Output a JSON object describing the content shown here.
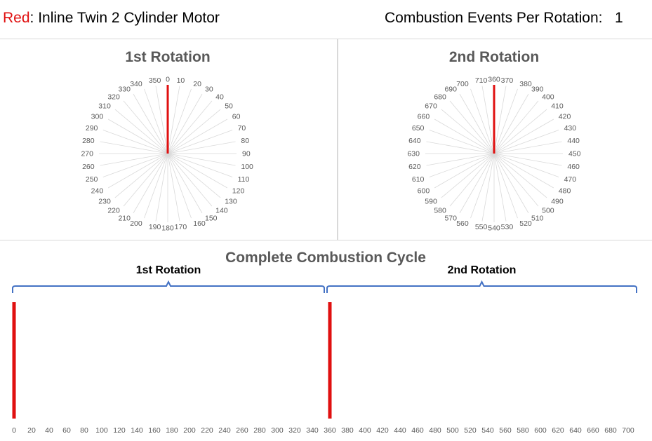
{
  "header": {
    "color_name": "Red",
    "motor_name": ": Inline Twin 2 Cylinder Motor",
    "events_label": "Combustion Events Per Rotation:",
    "events_value": "1"
  },
  "colors": {
    "event": "#e01010",
    "spoke": "#d9d9d9",
    "brace": "#4472c4",
    "title": "#595959"
  },
  "chart_data": [
    {
      "type": "radar",
      "title": "1st Rotation",
      "angle_labels": [
        0,
        10,
        20,
        30,
        40,
        50,
        60,
        70,
        80,
        90,
        100,
        110,
        120,
        130,
        140,
        150,
        160,
        170,
        180,
        190,
        200,
        210,
        220,
        230,
        240,
        250,
        260,
        270,
        280,
        290,
        300,
        310,
        320,
        330,
        340,
        350
      ],
      "series": [
        {
          "name": "Red",
          "events_deg": [
            0
          ]
        }
      ]
    },
    {
      "type": "radar",
      "title": "2nd Rotation",
      "angle_labels": [
        360,
        370,
        380,
        390,
        400,
        410,
        420,
        430,
        440,
        450,
        460,
        470,
        480,
        490,
        500,
        510,
        520,
        530,
        540,
        550,
        560,
        570,
        580,
        590,
        600,
        610,
        620,
        630,
        640,
        650,
        660,
        670,
        680,
        690,
        700,
        710
      ],
      "series": [
        {
          "name": "Red",
          "events_deg": [
            360
          ]
        }
      ]
    },
    {
      "type": "bar",
      "title": "Complete Combustion Cycle",
      "x_ticks": [
        0,
        20,
        40,
        60,
        80,
        100,
        120,
        140,
        160,
        180,
        200,
        220,
        240,
        260,
        280,
        300,
        320,
        340,
        360,
        380,
        400,
        420,
        440,
        460,
        480,
        500,
        520,
        540,
        560,
        580,
        600,
        620,
        640,
        660,
        680,
        700
      ],
      "xlim": [
        0,
        715
      ],
      "groups": [
        "1st Rotation",
        "2nd Rotation"
      ],
      "series": [
        {
          "name": "Red",
          "events_deg": [
            0,
            360
          ]
        }
      ]
    }
  ]
}
